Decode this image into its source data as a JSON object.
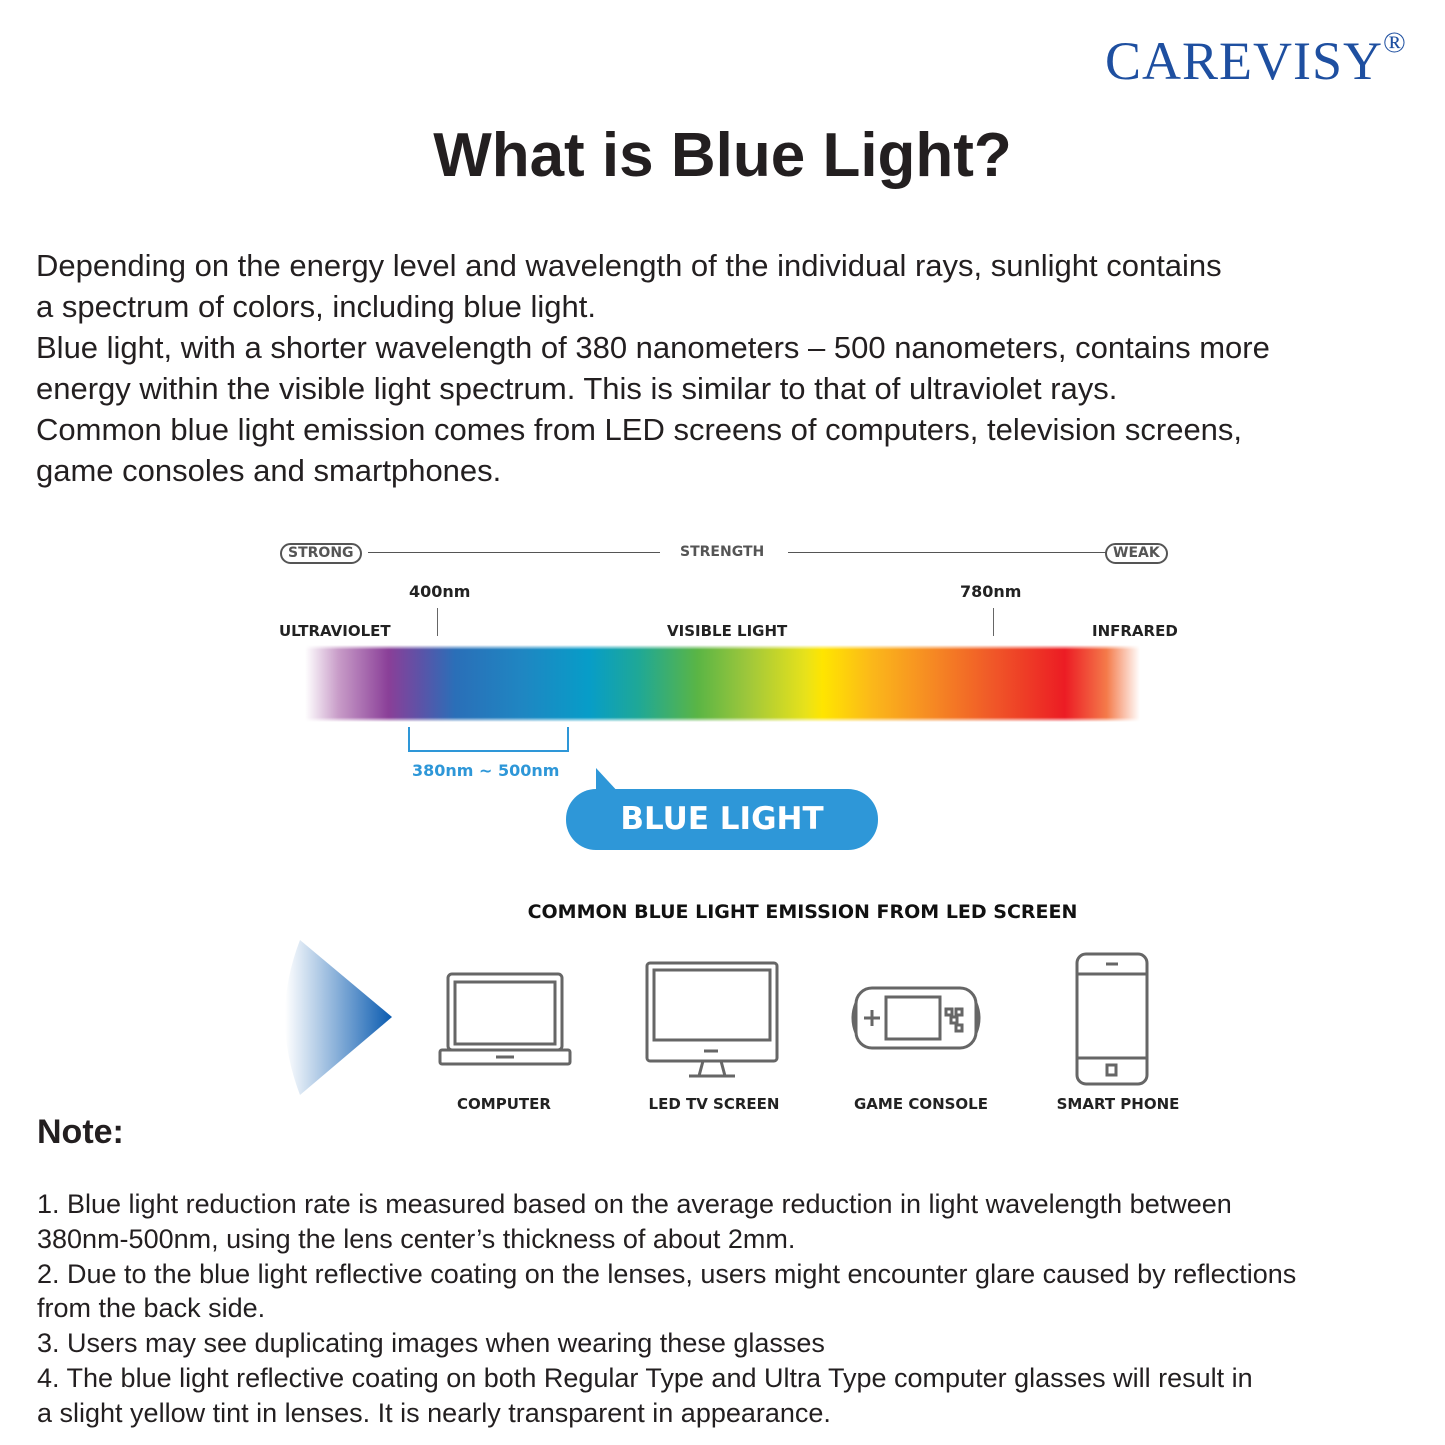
{
  "brand": {
    "name": "CAREVISY",
    "mark": "®",
    "color": "#1e4fa0"
  },
  "title": "What is Blue Light?",
  "intro_lines": [
    "Depending on the energy level and wavelength of the individual rays, sunlight contains",
    "a spectrum of colors, including blue light.",
    "Blue light, with a shorter wavelength of 380 nanometers – 500 nanometers, contains more",
    "energy within the visible light spectrum. This is similar to that of ultraviolet rays.",
    "Common blue light emission comes from LED screens of computers, television screens,",
    "game consoles and smartphones."
  ],
  "spectrum": {
    "strong": "STRONG",
    "strength": "STRENGTH",
    "weak": "WEAK",
    "nm400": "400nm",
    "nm780": "780nm",
    "ultraviolet": "ULTRAVIOLET",
    "visible": "VISIBLE LIGHT",
    "infrared": "INFRARED",
    "range": "380nm ~ 500nm",
    "blue_light": "BLUE LIGHT",
    "accent": "#2e97d8"
  },
  "devices": {
    "heading": "COMMON BLUE LIGHT EMISSION FROM LED SCREEN",
    "items": [
      {
        "label": "COMPUTER",
        "icon": "laptop-icon"
      },
      {
        "label": "LED TV SCREEN",
        "icon": "monitor-icon"
      },
      {
        "label": "GAME CONSOLE",
        "icon": "game-console-icon"
      },
      {
        "label": "SMART PHONE",
        "icon": "smartphone-icon"
      }
    ]
  },
  "note": {
    "heading": "Note:",
    "lines": [
      "1. Blue light reduction rate is measured based on the average reduction in light wavelength between",
      "380nm-500nm, using the lens center’s thickness of about 2mm.",
      "2. Due to the blue light reflective coating on the lenses, users might encounter glare caused by reflections",
      "from the back side.",
      "3. Users may see duplicating images when wearing these glasses",
      "4. The blue light reflective coating on both Regular Type and Ultra Type computer glasses will result in",
      "a slight yellow tint in lenses. It is nearly transparent in appearance."
    ]
  }
}
